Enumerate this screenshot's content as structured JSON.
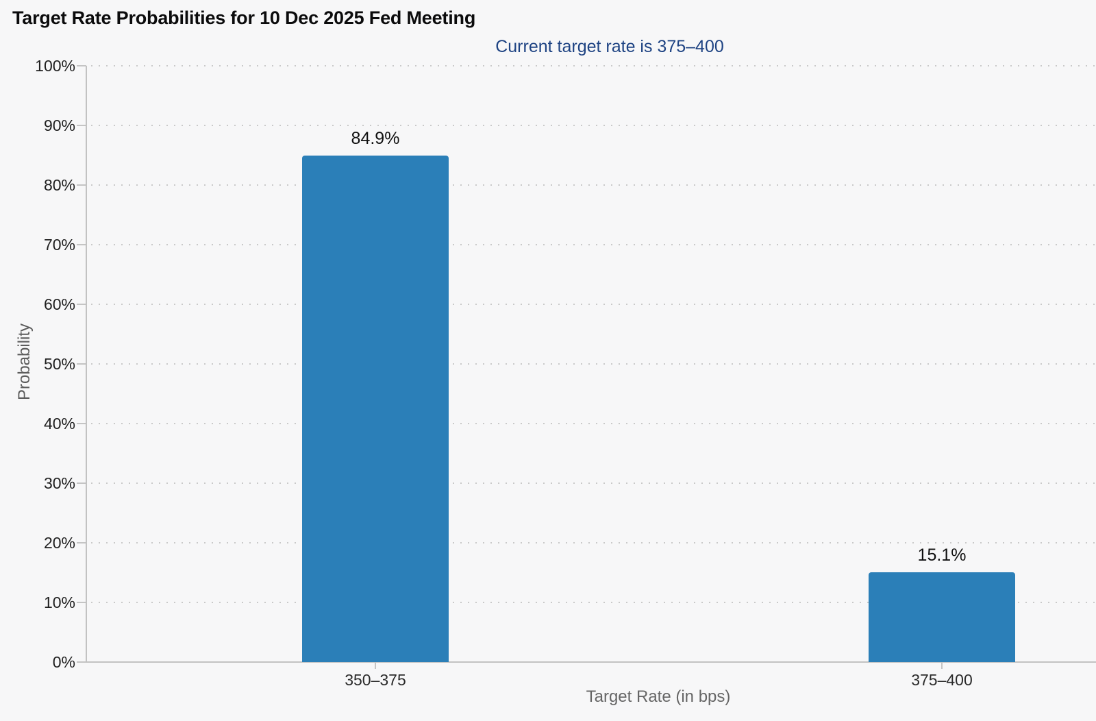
{
  "chart_data": {
    "type": "bar",
    "title": "Target Rate Probabilities for 10 Dec 2025 Fed Meeting",
    "subtitle": "Current target rate is 375–400",
    "xlabel": "Target Rate (in bps)",
    "ylabel": "Probability",
    "categories": [
      "350–375",
      "375–400"
    ],
    "values": [
      84.9,
      15.1
    ],
    "value_labels": [
      "84.9%",
      "15.1%"
    ],
    "ylim": [
      0,
      100
    ],
    "y_tick_step": 10,
    "y_tick_labels": [
      "0%",
      "10%",
      "20%",
      "30%",
      "40%",
      "50%",
      "60%",
      "70%",
      "80%",
      "90%",
      "100%"
    ],
    "grid": "horizontal-dotted",
    "legend": "none",
    "colors": {
      "bar": "#2B7FB8",
      "subtitle_text": "#1E4383",
      "title_text": "#0B0B0C",
      "tick_label_text": "#1F1F1F",
      "axis_title_text": "#666666",
      "axis_line": "#C2C2C2",
      "grid_dot": "#C9C9C9",
      "background": "#F7F7F8"
    }
  }
}
